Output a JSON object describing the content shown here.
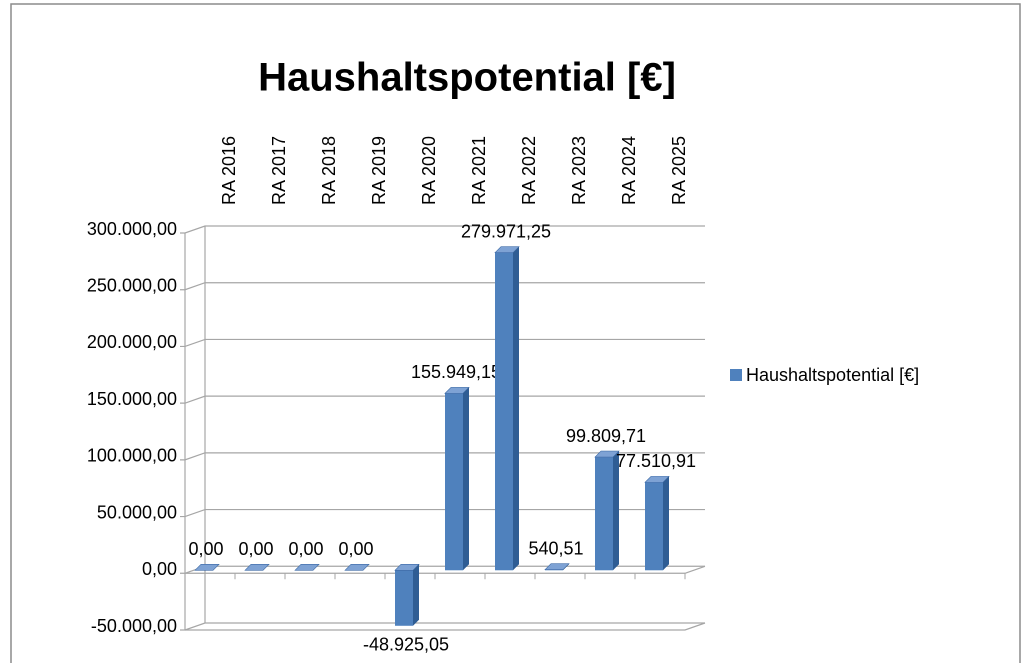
{
  "chart_data": {
    "type": "bar",
    "title": "Haushaltspotential [€]",
    "categories": [
      "RA 2016",
      "RA 2017",
      "RA 2018",
      "RA 2019",
      "RA 2020",
      "RA 2021",
      "RA 2022",
      "RA 2023",
      "RA 2024",
      "RA 2025"
    ],
    "series": [
      {
        "name": "Haushaltspotential [€]",
        "color": "#4f81bd",
        "values": [
          0,
          0,
          0,
          0,
          -48925.05,
          155949.15,
          279971.25,
          540.51,
          99809.71,
          77510.91
        ],
        "value_labels": [
          "0,00",
          "0,00",
          "0,00",
          "0,00",
          "-48.925,05",
          "155.949,15",
          "279.971,25",
          "540,51",
          "99.809,71",
          "77.510,91"
        ]
      }
    ],
    "ylim": [
      -50000,
      300000
    ],
    "yticks": [
      {
        "value": -50000,
        "label": "-50.000,00"
      },
      {
        "value": 0,
        "label": "0,00"
      },
      {
        "value": 50000,
        "label": "50.000,00"
      },
      {
        "value": 100000,
        "label": "100.000,00"
      },
      {
        "value": 150000,
        "label": "150.000,00"
      },
      {
        "value": 200000,
        "label": "200.000,00"
      },
      {
        "value": 250000,
        "label": "250.000,00"
      },
      {
        "value": 300000,
        "label": "300.000,00"
      }
    ],
    "grid": true,
    "legend": "right"
  }
}
